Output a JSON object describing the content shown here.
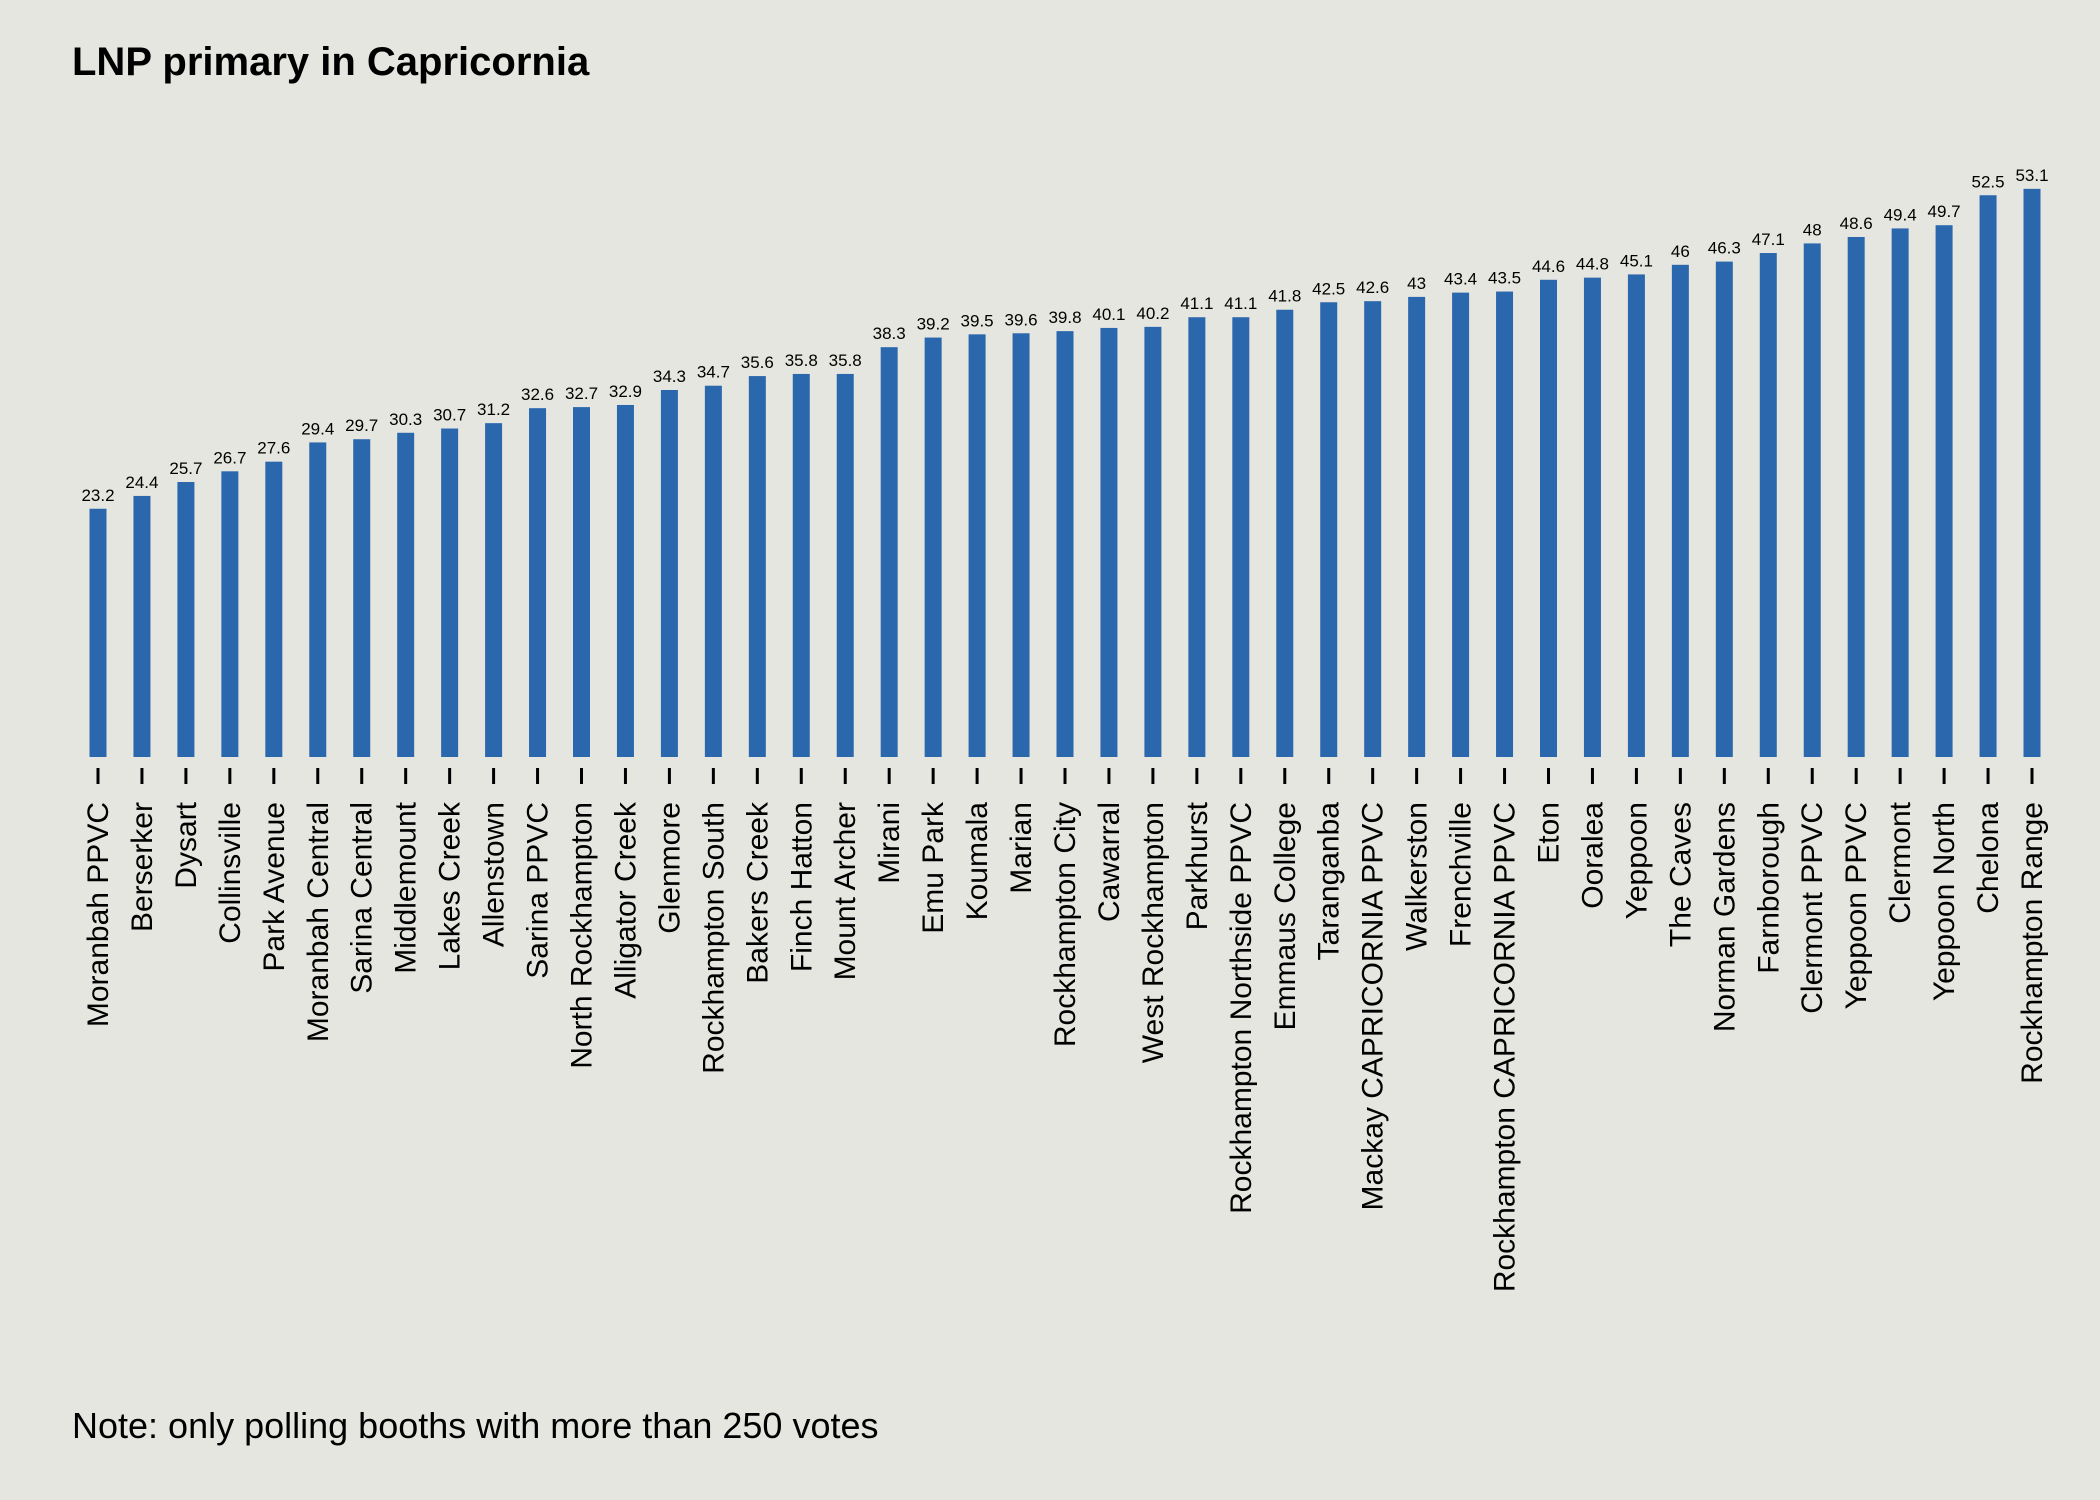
{
  "chart_data": {
    "type": "bar",
    "title": "LNP primary in Capricornia",
    "note": "Note: only polling booths with more than 250 votes",
    "xlabel": "",
    "ylabel": "",
    "ylim": [
      0,
      60
    ],
    "grid": false,
    "legend": "none",
    "bar_color": "#2b67ad",
    "background": "#e6e6e0",
    "categories": [
      "Moranbah PPVC",
      "Berserker",
      "Dysart",
      "Collinsville",
      "Park Avenue",
      "Moranbah Central",
      "Sarina Central",
      "Middlemount",
      "Lakes Creek",
      "Allenstown",
      "Sarina PPVC",
      "North Rockhampton",
      "Alligator Creek",
      "Glenmore",
      "Rockhampton South",
      "Bakers Creek",
      "Finch Hatton",
      "Mount Archer",
      "Mirani",
      "Emu Park",
      "Koumala",
      "Marian",
      "Rockhampton City",
      "Cawarral",
      "West Rockhampton",
      "Parkhurst",
      "Rockhampton Northside PPVC",
      "Emmaus College",
      "Taranganba",
      "Mackay CAPRICORNIA PPVC",
      "Walkerston",
      "Frenchville",
      "Rockhampton CAPRICORNIA PPVC",
      "Eton",
      "Ooralea",
      "Yeppoon",
      "The Caves",
      "Norman Gardens",
      "Farnborough",
      "Clermont PPVC",
      "Yeppoon PPVC",
      "Clermont",
      "Yeppoon North",
      "Chelona",
      "Rockhampton Range"
    ],
    "values": [
      23.2,
      24.4,
      25.7,
      26.7,
      27.6,
      29.4,
      29.7,
      30.3,
      30.7,
      31.2,
      32.6,
      32.7,
      32.9,
      34.3,
      34.7,
      35.6,
      35.8,
      35.8,
      38.3,
      39.2,
      39.5,
      39.6,
      39.8,
      40.1,
      40.2,
      41.1,
      41.1,
      41.8,
      42.5,
      42.6,
      43,
      43.4,
      43.5,
      44.6,
      44.8,
      45.1,
      46,
      46.3,
      47.1,
      48,
      48.6,
      49.4,
      49.7,
      52.5,
      53.1
    ]
  }
}
